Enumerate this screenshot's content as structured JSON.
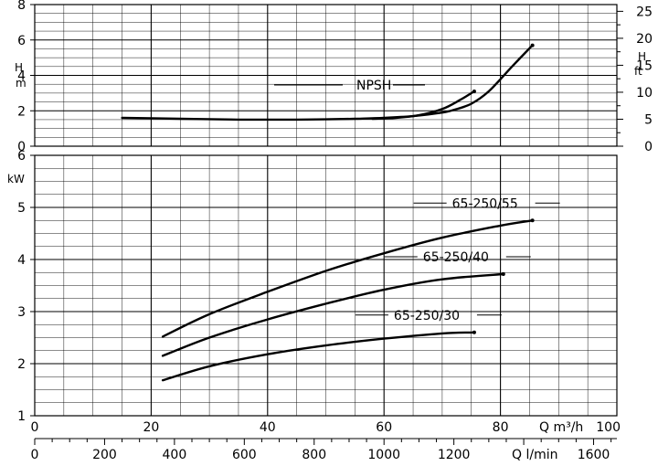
{
  "chart_data": [
    {
      "type": "line",
      "panel": "npsh",
      "left_axis": {
        "unit": "H\nm",
        "ylim": [
          0,
          8
        ],
        "ticks": [
          0,
          2,
          4,
          6,
          8
        ]
      },
      "right_axis": {
        "unit": "H\nft",
        "ylim": [
          0,
          26.25
        ],
        "ticks": [
          0,
          5,
          10,
          15,
          20,
          25
        ]
      },
      "series": [
        {
          "name": "NPSH",
          "x": [
            15,
            25,
            35,
            40,
            45,
            50,
            55,
            60,
            65,
            70,
            72,
            75,
            78,
            82,
            85.5
          ],
          "values": [
            1.6,
            1.55,
            1.5,
            1.5,
            1.5,
            1.52,
            1.55,
            1.6,
            1.7,
            1.9,
            2.05,
            2.4,
            3.1,
            4.5,
            5.7
          ]
        },
        {
          "name": "",
          "x": [
            58,
            62,
            66,
            70,
            73,
            75.5
          ],
          "values": [
            1.55,
            1.6,
            1.75,
            2.1,
            2.6,
            3.1
          ]
        }
      ]
    },
    {
      "type": "line",
      "panel": "power",
      "yunit": "kW",
      "ylim": [
        1,
        6
      ],
      "yticks": [
        1,
        2,
        3,
        4,
        5,
        6
      ],
      "series": [
        {
          "name": "65-250/55",
          "x": [
            22,
            30,
            40,
            50,
            60,
            70,
            80,
            85.5
          ],
          "values": [
            2.52,
            2.95,
            3.38,
            3.78,
            4.12,
            4.42,
            4.65,
            4.75
          ]
        },
        {
          "name": "65-250/40",
          "x": [
            22,
            30,
            40,
            50,
            60,
            70,
            80.5
          ],
          "values": [
            2.15,
            2.5,
            2.85,
            3.15,
            3.42,
            3.62,
            3.72
          ]
        },
        {
          "name": "65-250/30",
          "x": [
            22,
            30,
            40,
            50,
            60,
            70,
            75.5
          ],
          "values": [
            1.68,
            1.95,
            2.18,
            2.35,
            2.48,
            2.58,
            2.6
          ]
        }
      ]
    }
  ],
  "x_axes": {
    "q_m3h": {
      "label": "Q m³/h",
      "ticks": [
        0,
        20,
        40,
        60,
        80,
        100
      ],
      "xlim": [
        0,
        100
      ]
    },
    "q_lmin": {
      "label": "Q l/min",
      "ticks": [
        0,
        200,
        400,
        600,
        800,
        1000,
        1200,
        1600
      ]
    }
  }
}
